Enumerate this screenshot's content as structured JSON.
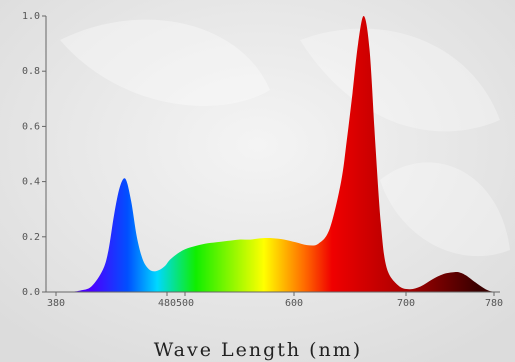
{
  "chart_data": {
    "type": "area",
    "title": "",
    "xlabel": "Wave Length (nm)",
    "ylabel": "",
    "xlim": [
      380,
      780
    ],
    "ylim": [
      0,
      1.0
    ],
    "x_ticks": [
      "380",
      "480",
      "500",
      "600",
      "700",
      "780"
    ],
    "y_ticks": [
      "0.0",
      "0.2",
      "0.4",
      "0.6",
      "0.8",
      "1.0"
    ],
    "grid": false,
    "legend": "none",
    "series": [
      {
        "x": [
          400,
          410,
          420,
          430,
          435,
          440,
          445,
          450,
          455,
          460,
          465,
          470,
          475,
          480,
          485,
          490,
          500,
          510,
          520,
          530,
          540,
          550,
          560,
          570,
          580,
          590,
          600,
          610,
          620,
          630,
          640,
          645,
          650,
          655,
          660,
          665,
          670,
          675,
          680,
          690,
          700,
          710,
          720,
          730,
          740,
          745,
          750,
          760,
          770,
          780
        ],
        "values": [
          0.0,
          0.005,
          0.02,
          0.08,
          0.15,
          0.28,
          0.38,
          0.41,
          0.33,
          0.2,
          0.12,
          0.085,
          0.075,
          0.08,
          0.095,
          0.12,
          0.15,
          0.165,
          0.175,
          0.18,
          0.185,
          0.19,
          0.19,
          0.195,
          0.195,
          0.19,
          0.18,
          0.17,
          0.175,
          0.23,
          0.4,
          0.55,
          0.72,
          0.9,
          1.0,
          0.88,
          0.55,
          0.25,
          0.09,
          0.025,
          0.01,
          0.02,
          0.045,
          0.065,
          0.072,
          0.07,
          0.06,
          0.03,
          0.005,
          0.0
        ]
      }
    ],
    "colors": {
      "violet": "#4b00ff",
      "blue": "#0050ff",
      "cyan": "#00d8ff",
      "green": "#10ee00",
      "yellow": "#ffff00",
      "orange": "#ff6a00",
      "red": "#f00000",
      "darkred": "#b00000",
      "deep": "#3a0000"
    }
  }
}
